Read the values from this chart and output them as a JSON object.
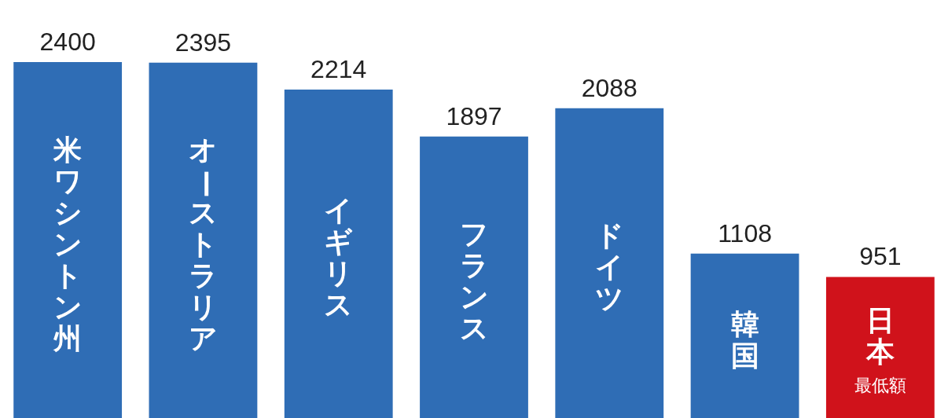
{
  "chart_data": {
    "type": "bar",
    "categories": [
      "米ワシントン州",
      "オーストラリア",
      "イギリス",
      "フランス",
      "ドイツ",
      "韓国",
      "日本"
    ],
    "values": [
      2400,
      2395,
      2214,
      1897,
      2088,
      1108,
      951
    ],
    "colors": [
      "#2f6db5",
      "#2f6db5",
      "#2f6db5",
      "#2f6db5",
      "#2f6db5",
      "#2f6db5",
      "#d0121b"
    ],
    "tick_labels": false,
    "legend": false,
    "data_labels": true,
    "annotations": [
      "最低額"
    ]
  }
}
